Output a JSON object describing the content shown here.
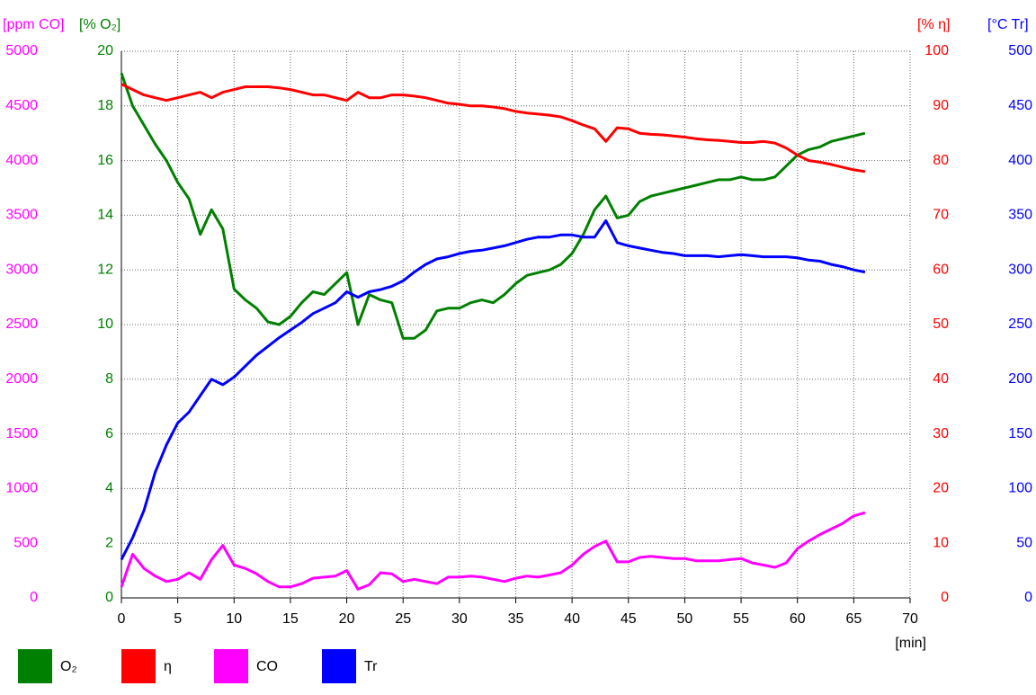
{
  "chart_data": {
    "type": "line",
    "xlabel": "[min]",
    "x": [
      0,
      1,
      2,
      3,
      4,
      5,
      6,
      7,
      8,
      9,
      10,
      11,
      12,
      13,
      14,
      15,
      16,
      17,
      18,
      19,
      20,
      21,
      22,
      23,
      24,
      25,
      26,
      27,
      28,
      29,
      30,
      31,
      32,
      33,
      34,
      35,
      36,
      37,
      38,
      39,
      40,
      41,
      42,
      43,
      44,
      45,
      46,
      47,
      48,
      49,
      50,
      51,
      52,
      53,
      54,
      55,
      56,
      57,
      58,
      59,
      60,
      61,
      62,
      63,
      64,
      65,
      66
    ],
    "xlim": [
      0,
      70
    ],
    "xticks": [
      0,
      5,
      10,
      15,
      20,
      25,
      30,
      35,
      40,
      45,
      50,
      55,
      60,
      65,
      70
    ],
    "grid": true,
    "axes": [
      {
        "label": "[ppm CO]",
        "color": "#ff00ff",
        "side": "left",
        "ylim": [
          0,
          5000
        ],
        "yticks": [
          0,
          500,
          1000,
          1500,
          2000,
          2500,
          3000,
          3500,
          4000,
          4500,
          5000
        ]
      },
      {
        "label": "[% O₂]",
        "color": "#008000",
        "side": "left",
        "ylim": [
          0,
          20
        ],
        "yticks": [
          0,
          2,
          4,
          6,
          8,
          10,
          12,
          14,
          16,
          18,
          20
        ]
      },
      {
        "label": "[% η]",
        "color": "#ff0000",
        "side": "right",
        "ylim": [
          0,
          100
        ],
        "yticks": [
          0,
          10,
          20,
          30,
          40,
          50,
          60,
          70,
          80,
          90,
          100
        ]
      },
      {
        "label": "[°C Tr]",
        "color": "#0000ff",
        "side": "right",
        "ylim": [
          0,
          500
        ],
        "yticks": [
          0,
          50,
          100,
          150,
          200,
          250,
          300,
          350,
          400,
          450,
          500
        ]
      }
    ],
    "series": [
      {
        "name": "O₂",
        "color": "#008000",
        "axis": 1,
        "values": [
          19.2,
          18.0,
          17.3,
          16.6,
          16.0,
          15.2,
          14.6,
          13.3,
          14.2,
          13.5,
          11.3,
          10.9,
          10.6,
          10.1,
          10.0,
          10.3,
          10.8,
          11.2,
          11.1,
          11.5,
          11.9,
          10.0,
          11.1,
          10.9,
          10.8,
          9.5,
          9.5,
          9.8,
          10.5,
          10.6,
          10.6,
          10.8,
          10.9,
          10.8,
          11.1,
          11.5,
          11.8,
          11.9,
          12.0,
          12.2,
          12.6,
          13.3,
          14.2,
          14.7,
          13.9,
          14.0,
          14.5,
          14.7,
          14.8,
          14.9,
          15.0,
          15.1,
          15.2,
          15.3,
          15.3,
          15.4,
          15.3,
          15.3,
          15.4,
          15.8,
          16.2,
          16.4,
          16.5,
          16.7,
          16.8,
          16.9,
          17.0
        ]
      },
      {
        "name": "η",
        "color": "#ff0000",
        "axis": 2,
        "values": [
          94,
          93,
          92,
          91.5,
          91,
          91.5,
          92,
          92.5,
          91.5,
          92.5,
          93,
          93.5,
          93.5,
          93.5,
          93.3,
          93,
          92.5,
          92,
          92,
          91.5,
          91,
          92.5,
          91.5,
          91.5,
          92,
          92,
          91.8,
          91.5,
          91,
          90.5,
          90.3,
          90,
          90,
          89.8,
          89.5,
          89,
          88.7,
          88.5,
          88.3,
          88,
          87.3,
          86.5,
          85.8,
          83.5,
          86,
          85.8,
          85,
          84.8,
          84.7,
          84.5,
          84.3,
          84,
          83.8,
          83.7,
          83.5,
          83.3,
          83.3,
          83.5,
          83.2,
          82.3,
          81,
          80,
          79.7,
          79.3,
          78.8,
          78.3,
          78
        ]
      },
      {
        "name": "CO",
        "color": "#ff00ff",
        "axis": 0,
        "values": [
          100,
          400,
          270,
          200,
          150,
          170,
          230,
          170,
          350,
          480,
          300,
          270,
          220,
          150,
          100,
          100,
          130,
          180,
          190,
          200,
          250,
          80,
          120,
          230,
          220,
          150,
          170,
          150,
          130,
          190,
          190,
          200,
          190,
          170,
          150,
          180,
          200,
          190,
          210,
          230,
          300,
          400,
          470,
          520,
          330,
          330,
          370,
          380,
          370,
          360,
          360,
          340,
          340,
          340,
          350,
          360,
          320,
          300,
          280,
          320,
          450,
          520,
          580,
          630,
          680,
          750,
          780
        ]
      },
      {
        "name": "Tr",
        "color": "#0000ff",
        "axis": 3,
        "values": [
          35,
          55,
          80,
          115,
          140,
          160,
          170,
          185,
          200,
          195,
          202,
          212,
          222,
          230,
          238,
          245,
          252,
          260,
          265,
          270,
          280,
          275,
          280,
          282,
          285,
          290,
          298,
          305,
          310,
          312,
          315,
          317,
          318,
          320,
          322,
          325,
          328,
          330,
          330,
          332,
          332,
          330,
          330,
          345,
          325,
          322,
          320,
          318,
          316,
          315,
          313,
          313,
          313,
          312,
          313,
          314,
          313,
          312,
          312,
          312,
          311,
          309,
          308,
          305,
          303,
          300,
          298
        ]
      }
    ]
  }
}
